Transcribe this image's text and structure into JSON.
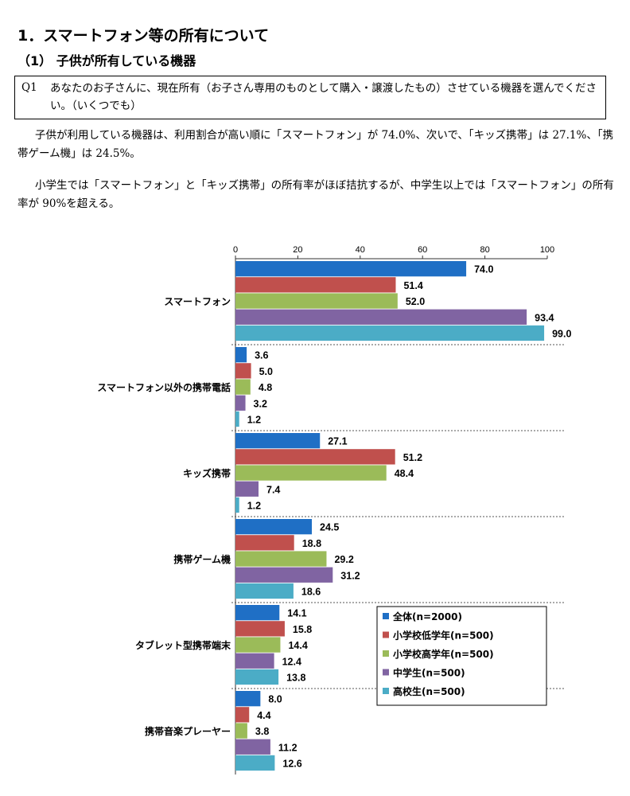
{
  "heading": "1．スマートフォン等の所有について",
  "subheading": "（1） 子供が所有している機器",
  "question": {
    "num": "Q1",
    "text": "あなたのお子さんに、現在所有（お子さん専用のものとして購入・譲渡したもの）させている機器を選んでください。（いくつでも）"
  },
  "paragraphs": [
    "子供が利用している機器は、利用割合が高い順に「スマートフォン」が 74.0%、次いで、「キッズ携帯」は 27.1%、「携帯ゲーム機」は 24.5%。",
    "小学生では「スマートフォン」と「キッズ携帯」の所有率がほぼ拮抗するが、中学生以上では「スマートフォン」の所有率が 90%を超える。"
  ],
  "chart_data": {
    "type": "bar",
    "orientation": "horizontal",
    "categories": [
      "スマートフォン",
      "スマートフォン以外の携帯電話",
      "キッズ携帯",
      "携帯ゲーム機",
      "タブレット型携帯端末",
      "携帯音楽プレーヤー"
    ],
    "series": [
      {
        "name": "全体(n=2000)",
        "color": "#1f6fc5",
        "values": [
          74.0,
          3.6,
          27.1,
          24.5,
          14.1,
          8.0
        ]
      },
      {
        "name": "小学校低学年(n=500)",
        "color": "#c0504d",
        "values": [
          51.4,
          5.0,
          51.2,
          18.8,
          15.8,
          4.4
        ]
      },
      {
        "name": "小学校高学年(n=500)",
        "color": "#9bbb59",
        "values": [
          52.0,
          4.8,
          48.4,
          29.2,
          14.4,
          3.8
        ]
      },
      {
        "name": "中学生(n=500)",
        "color": "#8064a2",
        "values": [
          93.4,
          3.2,
          7.4,
          31.2,
          12.4,
          11.2
        ]
      },
      {
        "name": "高校生(n=500)",
        "color": "#4bacc6",
        "values": [
          99.0,
          1.2,
          1.2,
          18.6,
          13.8,
          12.6
        ]
      }
    ],
    "xticks": [
      "0",
      "20",
      "40",
      "60",
      "80",
      "100"
    ],
    "xlim": [
      0,
      100
    ],
    "grid": false,
    "legend": "bottom-right"
  }
}
